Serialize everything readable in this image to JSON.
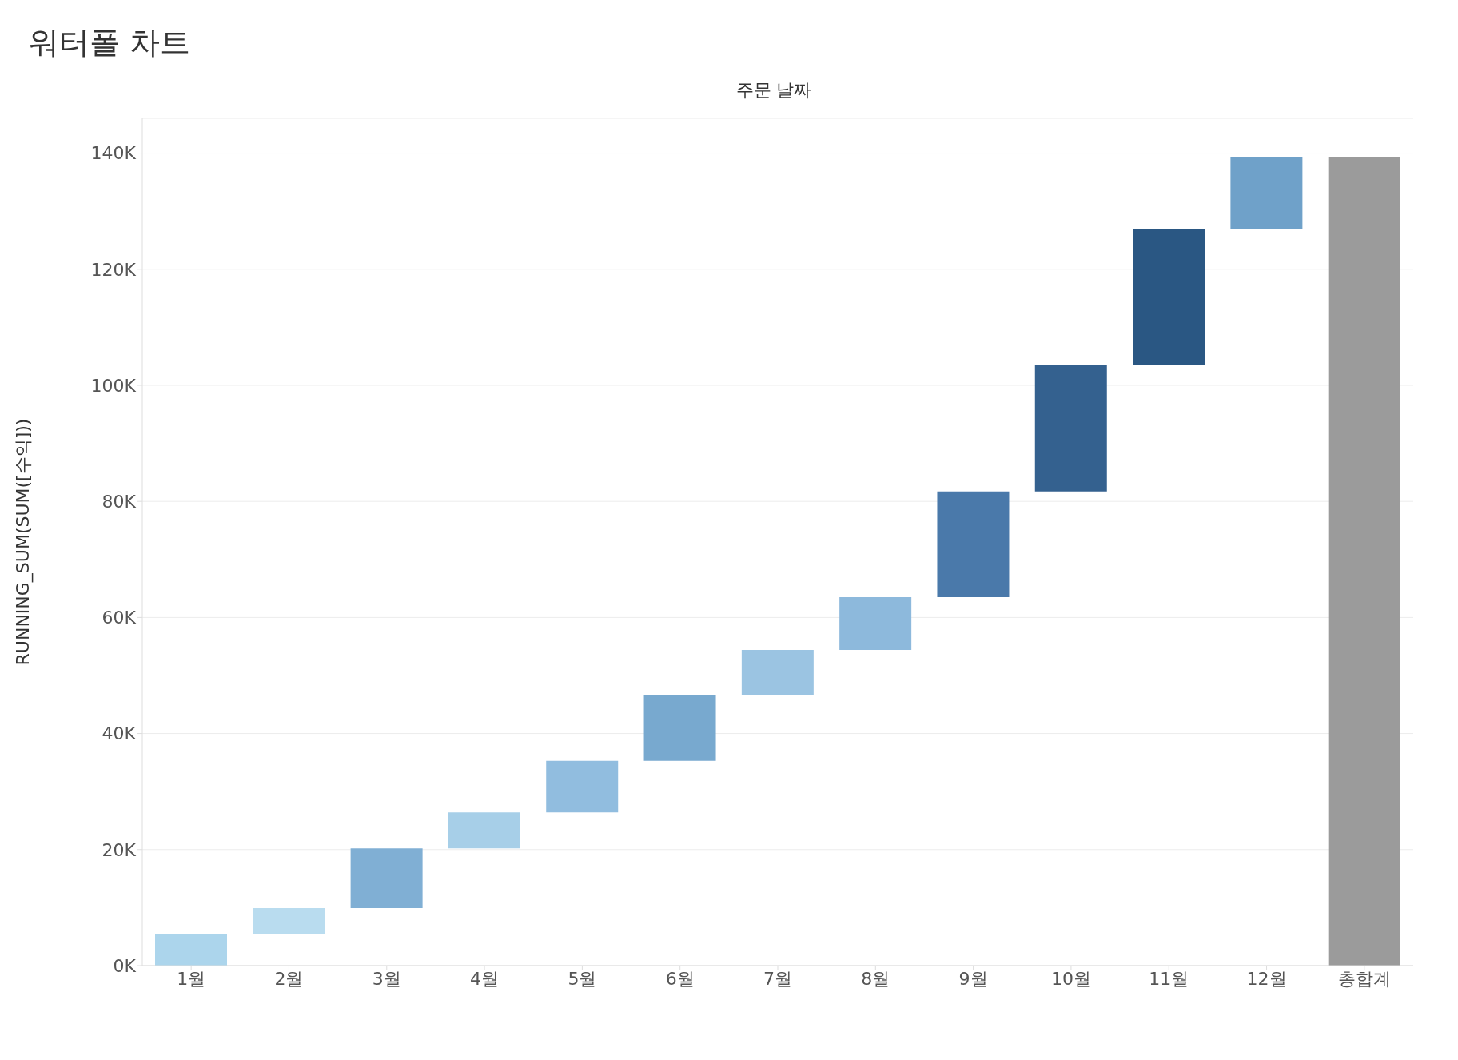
{
  "chart_data": {
    "type": "bar",
    "title": "워터폴 차트",
    "xlabel": "주문 날짜",
    "ylabel": "RUNNING_SUM(SUM([수익]))",
    "categories": [
      "1월",
      "2월",
      "3월",
      "4월",
      "5월",
      "6월",
      "7월",
      "8월",
      "9월",
      "10월",
      "11월",
      "12월",
      "총합계"
    ],
    "base": [
      0,
      5.4,
      9.9,
      20.2,
      26.4,
      35.3,
      46.7,
      54.4,
      63.5,
      81.7,
      103.5,
      127.0,
      0
    ],
    "values": [
      5.4,
      4.5,
      10.3,
      6.2,
      8.9,
      11.4,
      7.7,
      9.1,
      18.2,
      21.8,
      23.5,
      12.4,
      139.4
    ],
    "colors": [
      "#acd5ec",
      "#b9dcef",
      "#80afd4",
      "#a7cfe8",
      "#91bddf",
      "#78a9cf",
      "#9bc4e2",
      "#8db9dc",
      "#4a79aa",
      "#34618f",
      "#2a5783",
      "#6fa1c9",
      "#9b9b9b"
    ],
    "ylim": [
      0,
      146
    ],
    "yticks": [
      {
        "value": 0,
        "label": "0K"
      },
      {
        "value": 20,
        "label": "20K"
      },
      {
        "value": 40,
        "label": "40K"
      },
      {
        "value": 60,
        "label": "60K"
      },
      {
        "value": 80,
        "label": "80K"
      },
      {
        "value": 100,
        "label": "100K"
      },
      {
        "value": 120,
        "label": "120K"
      },
      {
        "value": 140,
        "label": "140K"
      }
    ],
    "grid": "y",
    "legend": false
  }
}
